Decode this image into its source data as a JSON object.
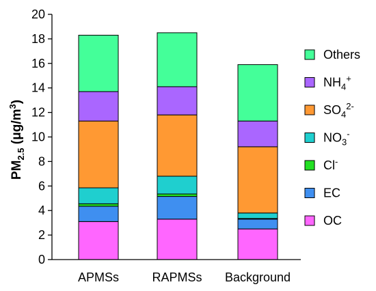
{
  "chart_data": {
    "type": "bar",
    "stacked": true,
    "categories": [
      "APMSs",
      "RAPMSs",
      "Background"
    ],
    "ylabel": {
      "main": "PM",
      "sub": "2.5",
      "unit_open": " (μg/m",
      "unit_sup": "3",
      "unit_close": ")"
    },
    "ylim": [
      0,
      20
    ],
    "yticks": [
      "0",
      "2",
      "4",
      "6",
      "8",
      "10",
      "12",
      "14",
      "16",
      "18",
      "20"
    ],
    "grid": false,
    "legend_position": "right",
    "series": [
      {
        "name": "OC",
        "color": "#ff66ff",
        "values": [
          3.1,
          3.3,
          2.5
        ],
        "label": {
          "base": "OC",
          "sub": "",
          "sup": ""
        }
      },
      {
        "name": "EC",
        "color": "#3f8ff0",
        "values": [
          1.25,
          1.85,
          0.8
        ],
        "label": {
          "base": "EC",
          "sub": "",
          "sup": ""
        }
      },
      {
        "name": "Cl-",
        "color": "#22e022",
        "values": [
          0.2,
          0.2,
          0.05
        ],
        "label": {
          "base": "Cl",
          "sub": "",
          "sup": "-"
        }
      },
      {
        "name": "NO3-",
        "color": "#1fcfcf",
        "values": [
          1.3,
          1.45,
          0.45
        ],
        "label": {
          "base": "NO",
          "sub": "3",
          "sup": "-"
        }
      },
      {
        "name": "SO42-",
        "color": "#ff9933",
        "values": [
          5.45,
          5.0,
          5.4
        ],
        "label": {
          "base": "SO",
          "sub": "4",
          "sup": "2-"
        }
      },
      {
        "name": "NH4+",
        "color": "#aa66ff",
        "values": [
          2.4,
          2.3,
          2.1
        ],
        "label": {
          "base": "NH",
          "sub": "4",
          "sup": "+"
        }
      },
      {
        "name": "Others",
        "color": "#44ff99",
        "values": [
          4.6,
          4.4,
          4.6
        ],
        "label": {
          "base": "Others",
          "sub": "",
          "sup": ""
        }
      }
    ]
  }
}
